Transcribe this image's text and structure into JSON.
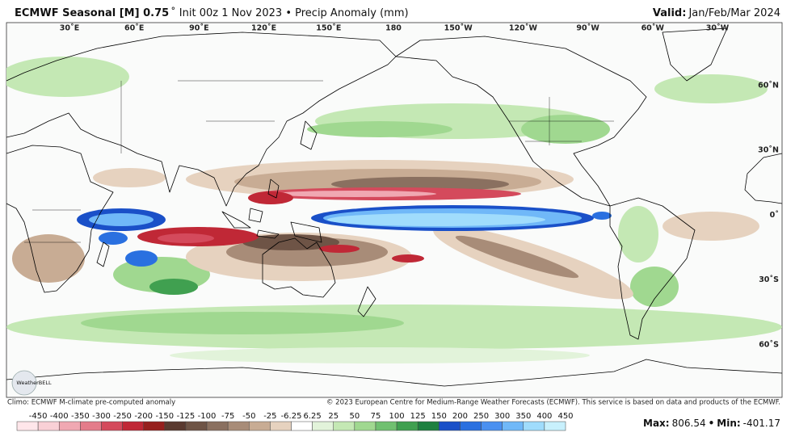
{
  "header": {
    "title": "ECMWF Seasonal [M] 0.75",
    "subtitle": "˚ Init 00z 1 Nov 2023 • Precip Anomaly (mm)",
    "valid_label": "Valid:",
    "valid_value": "Jan/Feb/Mar 2024"
  },
  "map": {
    "lon_labels": [
      "30˚E",
      "60˚E",
      "90˚E",
      "120˚E",
      "150˚E",
      "180",
      "150˚W",
      "120˚W",
      "90˚W",
      "60˚W",
      "30˚W"
    ],
    "lat_labels": [
      "60˚N",
      "30˚N",
      "0˚",
      "30˚S",
      "60˚S"
    ],
    "logo": "WeatherBELL"
  },
  "footer": {
    "climo": "Climo: ECMWF M-climate pre-computed anomaly",
    "copyright": "© 2023 European Centre for Medium-Range Weather Forecasts (ECMWF). This service is based on data and products of the ECMWF."
  },
  "colorbar": {
    "labels": [
      -450,
      -400,
      -350,
      -300,
      -250,
      -200,
      -150,
      -125,
      -100,
      -75,
      -50,
      -25,
      -6.25,
      6.25,
      25,
      50,
      75,
      100,
      125,
      150,
      200,
      250,
      300,
      350,
      400,
      450
    ],
    "colors": [
      "#ffe6ea",
      "#f9d0d6",
      "#f0a8b2",
      "#e47c8a",
      "#d44a5c",
      "#c02836",
      "#96201e",
      "#5a3a30",
      "#6e5446",
      "#8a7060",
      "#a88c78",
      "#c8ac94",
      "#e6d2bf",
      "#ffffff",
      "#e2f3da",
      "#c4e8b4",
      "#a0d890",
      "#70c070",
      "#40a050",
      "#1e8040",
      "#1a50c8",
      "#2a70e0",
      "#4a90f0",
      "#70b8f8",
      "#a0dcfc",
      "#c8f0fc"
    ]
  },
  "stats": {
    "max_label": "Max:",
    "max_value": 806.54,
    "separator": "•",
    "min_label": "Min:",
    "min_value": -401.17
  }
}
